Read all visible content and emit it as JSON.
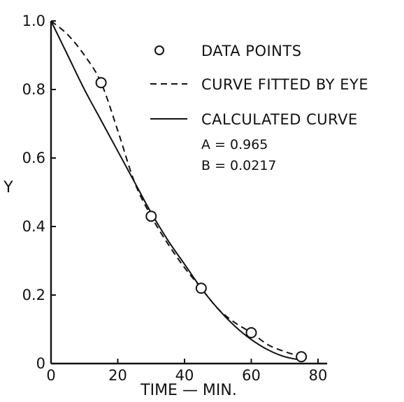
{
  "chart_data": {
    "type": "line",
    "xlabel": "TIME — MIN.",
    "ylabel": "Y",
    "xlim": [
      0,
      80
    ],
    "ylim": [
      0,
      1.0
    ],
    "x_ticks": [
      0,
      20,
      40,
      60,
      80
    ],
    "x_tick_labels": [
      "0",
      "20",
      "40",
      "60",
      "80"
    ],
    "y_ticks": [
      0,
      0.2,
      0.4,
      0.6,
      0.8,
      1.0
    ],
    "y_tick_labels": [
      "0",
      "0.2",
      "0.4",
      "0.6",
      "0.8",
      "1.0"
    ],
    "grid": false,
    "legend_position": "top-right",
    "series": [
      {
        "name": "DATA POINTS",
        "style": "open-circle",
        "x": [
          15,
          30,
          45,
          60,
          75
        ],
        "y": [
          0.82,
          0.43,
          0.22,
          0.09,
          0.02
        ]
      },
      {
        "name": "CURVE FITTED BY EYE",
        "style": "dashed",
        "x": [
          0,
          5,
          10,
          15,
          20,
          25,
          30,
          35,
          40,
          45,
          50,
          55,
          60,
          65,
          70,
          75
        ],
        "y": [
          1.0,
          0.96,
          0.9,
          0.82,
          0.68,
          0.53,
          0.43,
          0.35,
          0.28,
          0.22,
          0.16,
          0.12,
          0.09,
          0.055,
          0.035,
          0.02
        ]
      },
      {
        "name": "CALCULATED CURVE",
        "style": "solid",
        "x": [
          0,
          5,
          10,
          15,
          20,
          25,
          30,
          35,
          40,
          45,
          50,
          55,
          60,
          65,
          70,
          75
        ],
        "y": [
          1.0,
          0.9,
          0.8,
          0.71,
          0.62,
          0.53,
          0.44,
          0.36,
          0.29,
          0.22,
          0.16,
          0.11,
          0.07,
          0.04,
          0.02,
          0.01
        ]
      }
    ],
    "annotations": [
      "A = 0.965",
      "B = 0.0217"
    ]
  }
}
